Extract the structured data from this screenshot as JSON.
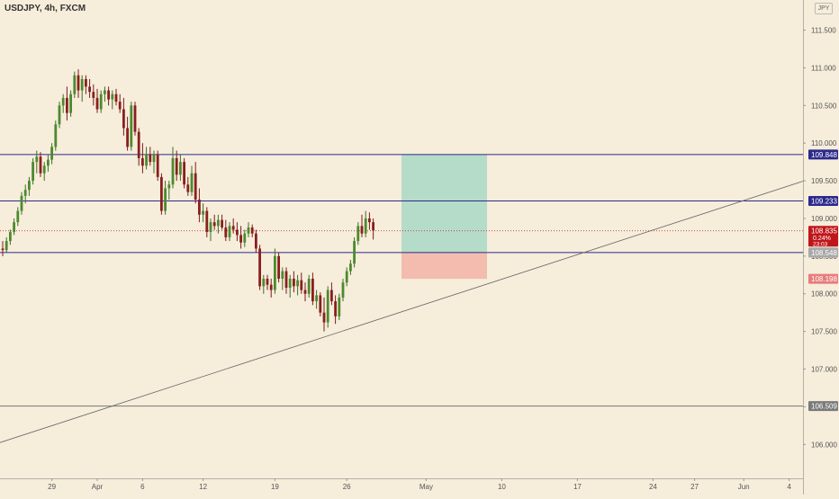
{
  "header": {
    "symbol_title": "USDJPY, 4h, FXCM",
    "currency": "JPY"
  },
  "colors": {
    "background": "#f6eddb",
    "up": "#4a7c2a",
    "down": "#8b1a1a",
    "level_line": "#2b2a8c",
    "trendline": "#666666",
    "target_zone": "#9fd6c3",
    "stop_zone": "#f2b3a6",
    "price_tag": "#c0161b"
  },
  "chart_data": {
    "type": "candlestick",
    "symbol": "USDJPY",
    "interval": "4h",
    "source": "FXCM",
    "y_range": [
      105.55,
      111.9
    ],
    "y_ticks": [
      "111.500",
      "111.000",
      "110.500",
      "110.000",
      "109.500",
      "109.000",
      "108.500",
      "108.000",
      "107.500",
      "107.000",
      "106.500",
      "106.000"
    ],
    "x_ticks": [
      "29",
      "Apr",
      "6",
      "12",
      "19",
      "26",
      "May",
      "10",
      "17",
      "24",
      "27",
      "Jun",
      "4"
    ],
    "horizontal_levels": [
      {
        "label": "109.848",
        "value": 109.848,
        "style": "level"
      },
      {
        "label": "109.233",
        "value": 109.233,
        "style": "level"
      },
      {
        "label": "108.548",
        "value": 108.548,
        "style": "entry"
      },
      {
        "label": "106.509",
        "value": 106.509,
        "style": "gray"
      }
    ],
    "position": {
      "entry": 108.548,
      "target": 109.848,
      "stop": 108.198,
      "stop_label": "108.198"
    },
    "last_price": {
      "price": "108.835",
      "change": "0.24%",
      "countdown": "23:03",
      "value": 108.835
    },
    "trendline": {
      "from": {
        "bar": -1,
        "value": 106.02
      },
      "to": {
        "bar": 212,
        "value": 109.5
      }
    },
    "ohlc": [
      [
        108.6,
        108.7,
        108.5,
        108.58
      ],
      [
        108.58,
        108.75,
        108.55,
        108.7
      ],
      [
        108.7,
        108.85,
        108.65,
        108.82
      ],
      [
        108.82,
        109.0,
        108.78,
        108.95
      ],
      [
        108.95,
        109.15,
        108.9,
        109.1
      ],
      [
        109.1,
        109.35,
        109.05,
        109.3
      ],
      [
        109.3,
        109.45,
        109.2,
        109.38
      ],
      [
        109.38,
        109.55,
        109.3,
        109.5
      ],
      [
        109.5,
        109.8,
        109.45,
        109.75
      ],
      [
        109.75,
        109.9,
        109.6,
        109.82
      ],
      [
        109.82,
        109.88,
        109.55,
        109.6
      ],
      [
        109.6,
        109.75,
        109.5,
        109.7
      ],
      [
        109.7,
        109.85,
        109.62,
        109.78
      ],
      [
        109.78,
        110.0,
        109.72,
        109.95
      ],
      [
        109.95,
        110.3,
        109.9,
        110.25
      ],
      [
        110.25,
        110.55,
        110.2,
        110.5
      ],
      [
        110.5,
        110.65,
        110.4,
        110.6
      ],
      [
        110.6,
        110.75,
        110.3,
        110.4
      ],
      [
        110.4,
        110.7,
        110.35,
        110.65
      ],
      [
        110.65,
        110.95,
        110.6,
        110.9
      ],
      [
        110.9,
        110.98,
        110.6,
        110.7
      ],
      [
        110.7,
        110.9,
        110.55,
        110.85
      ],
      [
        110.85,
        110.9,
        110.65,
        110.75
      ],
      [
        110.75,
        110.85,
        110.6,
        110.68
      ],
      [
        110.68,
        110.78,
        110.5,
        110.6
      ],
      [
        110.6,
        110.72,
        110.4,
        110.45
      ],
      [
        110.45,
        110.7,
        110.4,
        110.65
      ],
      [
        110.65,
        110.75,
        110.55,
        110.7
      ],
      [
        110.7,
        110.75,
        110.5,
        110.58
      ],
      [
        110.58,
        110.7,
        110.45,
        110.65
      ],
      [
        110.65,
        110.72,
        110.5,
        110.55
      ],
      [
        110.55,
        110.65,
        110.4,
        110.45
      ],
      [
        110.45,
        110.6,
        110.1,
        110.2
      ],
      [
        110.2,
        110.35,
        109.9,
        109.95
      ],
      [
        109.95,
        110.55,
        109.9,
        110.5
      ],
      [
        110.5,
        110.55,
        110.1,
        110.15
      ],
      [
        110.15,
        110.2,
        109.7,
        109.8
      ],
      [
        109.8,
        110.0,
        109.6,
        109.7
      ],
      [
        109.7,
        109.95,
        109.65,
        109.85
      ],
      [
        109.85,
        109.95,
        109.7,
        109.75
      ],
      [
        109.75,
        109.9,
        109.6,
        109.85
      ],
      [
        109.85,
        109.9,
        109.5,
        109.55
      ],
      [
        109.55,
        109.6,
        109.05,
        109.1
      ],
      [
        109.1,
        109.5,
        109.05,
        109.4
      ],
      [
        109.4,
        109.5,
        109.25,
        109.45
      ],
      [
        109.45,
        109.95,
        109.4,
        109.8
      ],
      [
        109.8,
        109.9,
        109.5,
        109.58
      ],
      [
        109.58,
        109.85,
        109.5,
        109.75
      ],
      [
        109.75,
        109.8,
        109.4,
        109.45
      ],
      [
        109.45,
        109.55,
        109.3,
        109.35
      ],
      [
        109.35,
        109.7,
        109.3,
        109.6
      ],
      [
        109.6,
        109.75,
        109.2,
        109.25
      ],
      [
        109.25,
        109.4,
        108.95,
        109.05
      ],
      [
        109.05,
        109.2,
        108.95,
        109.1
      ],
      [
        109.1,
        109.15,
        108.75,
        108.82
      ],
      [
        108.82,
        109.0,
        108.7,
        108.95
      ],
      [
        108.95,
        109.05,
        108.85,
        108.9
      ],
      [
        108.9,
        109.05,
        108.8,
        108.98
      ],
      [
        108.98,
        109.05,
        108.85,
        108.88
      ],
      [
        108.88,
        108.98,
        108.7,
        108.75
      ],
      [
        108.75,
        108.95,
        108.7,
        108.9
      ],
      [
        108.9,
        109.0,
        108.8,
        108.85
      ],
      [
        108.85,
        108.95,
        108.7,
        108.78
      ],
      [
        108.78,
        108.9,
        108.6,
        108.68
      ],
      [
        108.68,
        108.85,
        108.62,
        108.8
      ],
      [
        108.8,
        108.95,
        108.75,
        108.88
      ],
      [
        108.88,
        108.92,
        108.75,
        108.8
      ],
      [
        108.8,
        108.85,
        108.55,
        108.6
      ],
      [
        108.6,
        108.65,
        108.05,
        108.1
      ],
      [
        108.1,
        108.25,
        108.0,
        108.2
      ],
      [
        108.2,
        108.25,
        108.05,
        108.12
      ],
      [
        108.12,
        108.2,
        107.95,
        108.05
      ],
      [
        108.05,
        108.6,
        108.0,
        108.5
      ],
      [
        108.5,
        108.55,
        108.15,
        108.2
      ],
      [
        108.2,
        108.35,
        108.05,
        108.3
      ],
      [
        108.3,
        108.35,
        108.0,
        108.08
      ],
      [
        108.08,
        108.25,
        107.95,
        108.2
      ],
      [
        108.2,
        108.3,
        108.02,
        108.1
      ],
      [
        108.1,
        108.25,
        107.98,
        108.18
      ],
      [
        108.18,
        108.28,
        108.0,
        108.05
      ],
      [
        108.05,
        108.15,
        107.9,
        108.0
      ],
      [
        108.0,
        108.25,
        107.95,
        108.2
      ],
      [
        108.2,
        108.28,
        107.85,
        107.9
      ],
      [
        107.9,
        108.05,
        107.8,
        107.98
      ],
      [
        107.98,
        108.02,
        107.7,
        107.75
      ],
      [
        107.75,
        107.95,
        107.5,
        107.62
      ],
      [
        107.62,
        108.1,
        107.55,
        108.05
      ],
      [
        108.05,
        108.15,
        107.85,
        107.9
      ],
      [
        107.9,
        107.98,
        107.6,
        107.7
      ],
      [
        107.7,
        108.0,
        107.65,
        107.95
      ],
      [
        107.95,
        108.2,
        107.9,
        108.15
      ],
      [
        108.15,
        108.35,
        108.1,
        108.3
      ],
      [
        108.3,
        108.45,
        108.25,
        108.4
      ],
      [
        108.4,
        108.75,
        108.35,
        108.7
      ],
      [
        108.7,
        108.95,
        108.65,
        108.9
      ],
      [
        108.9,
        109.05,
        108.75,
        108.8
      ],
      [
        108.8,
        109.1,
        108.75,
        109.0
      ],
      [
        109.0,
        109.08,
        108.85,
        108.95
      ],
      [
        108.95,
        109.0,
        108.72,
        108.84
      ]
    ]
  }
}
